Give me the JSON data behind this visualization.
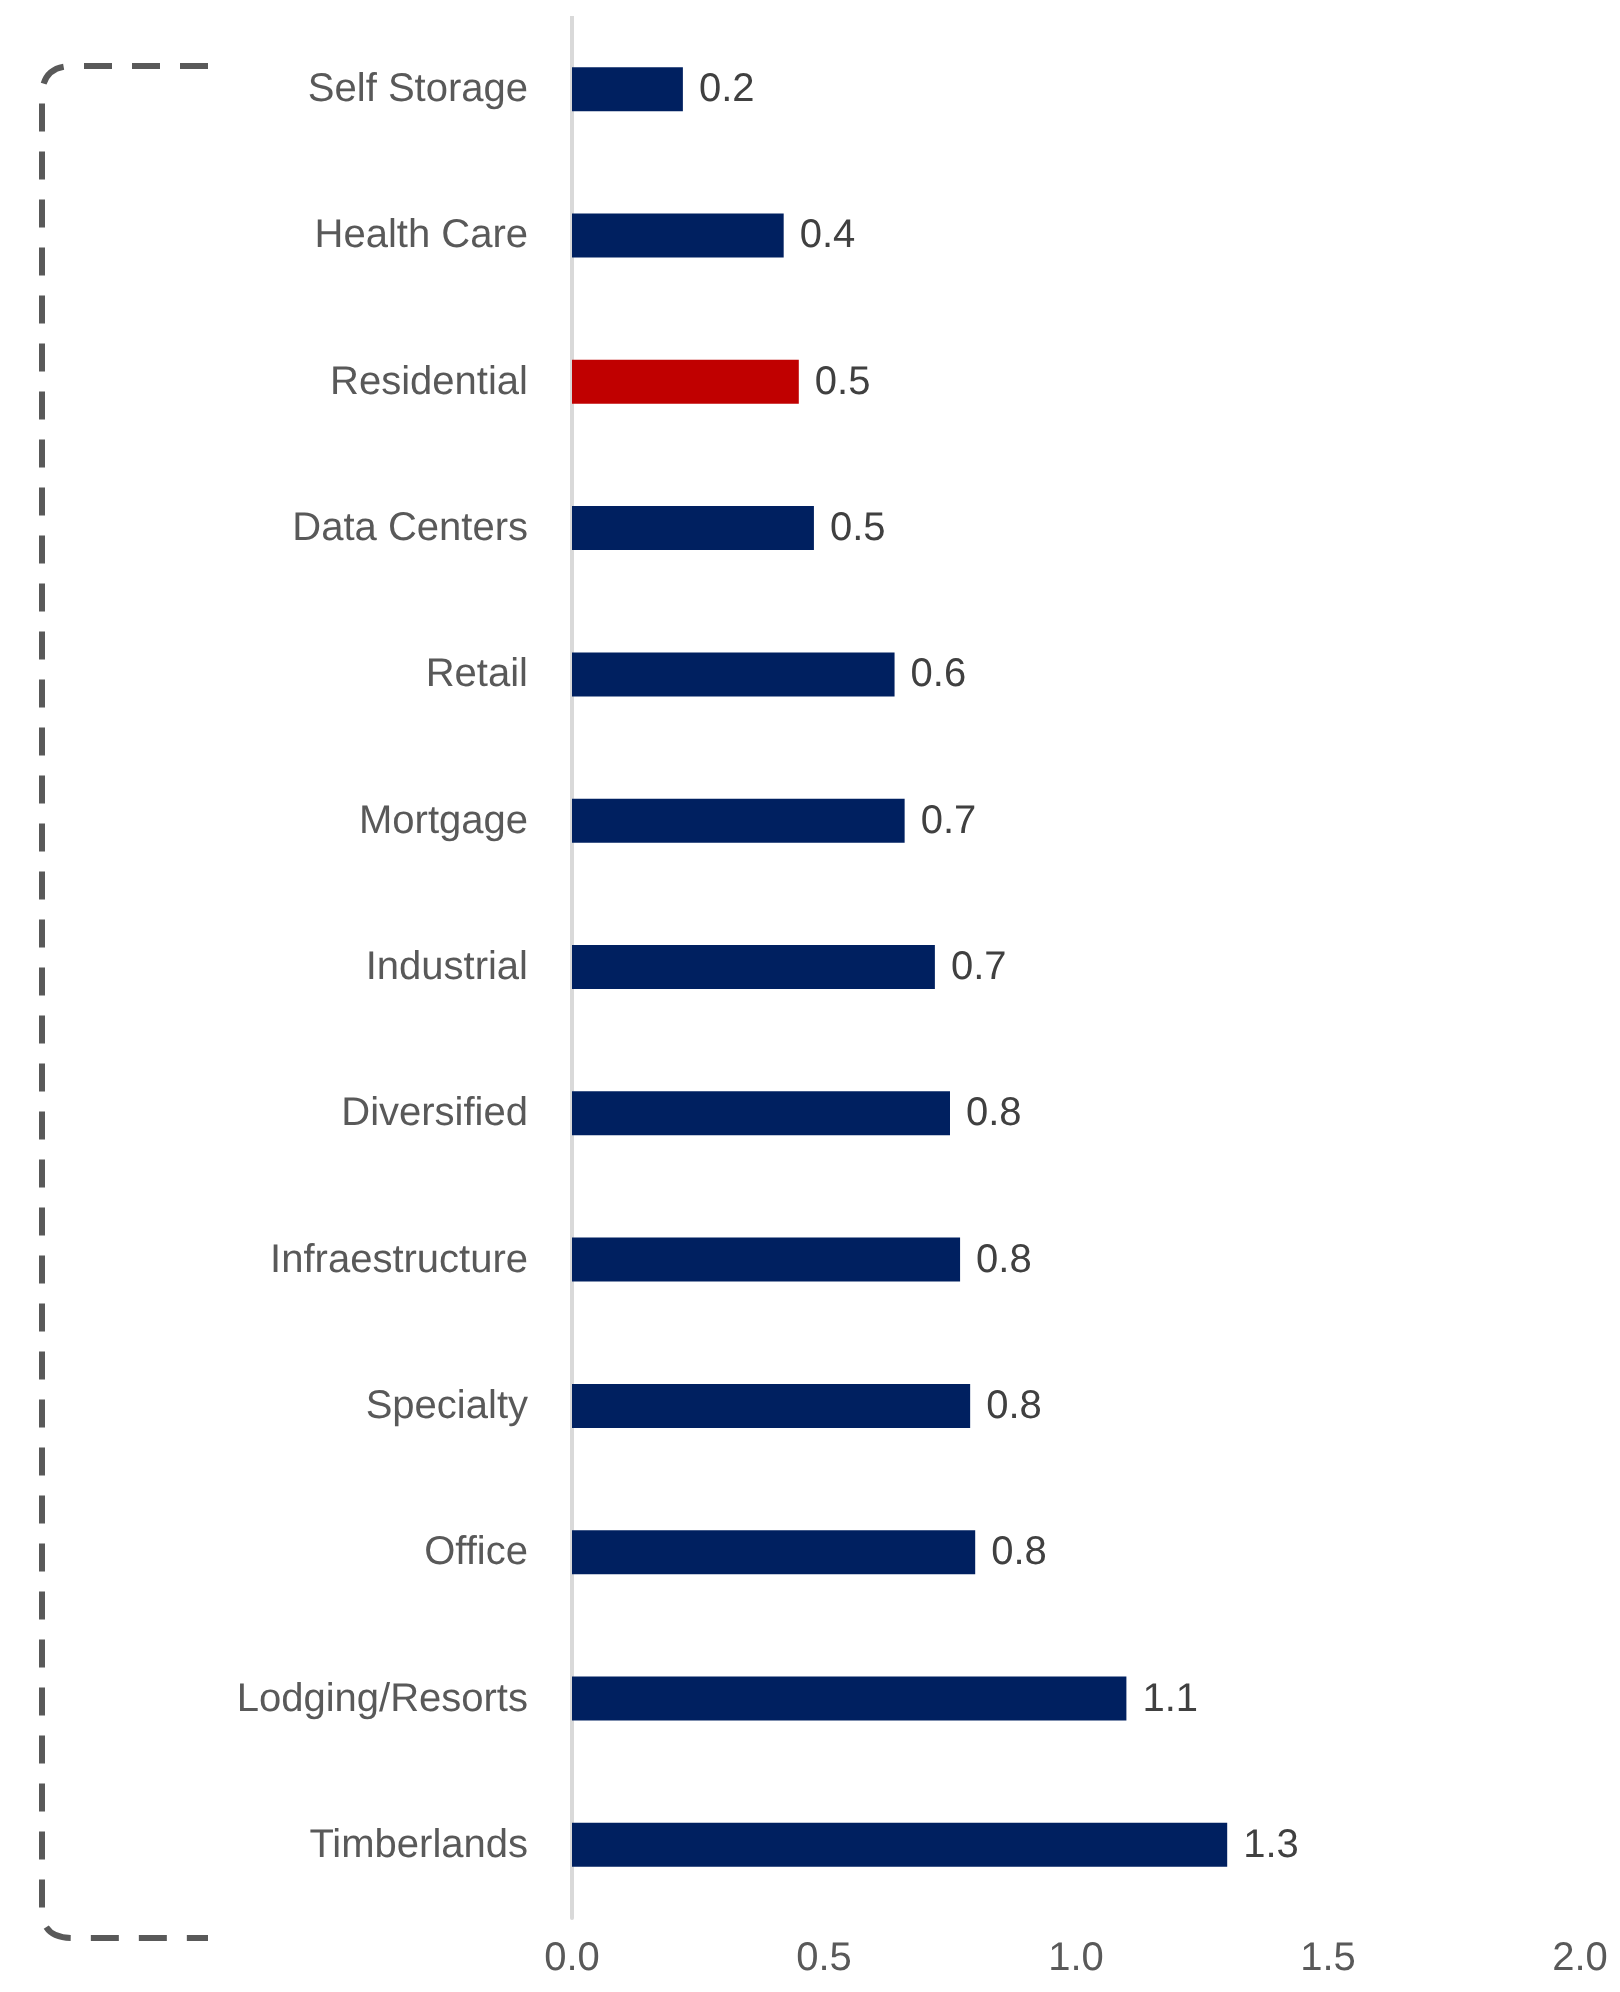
{
  "chart_data": {
    "type": "bar",
    "orientation": "horizontal",
    "categories": [
      "Self Storage",
      "Health Care",
      "Residential",
      "Data Centers",
      "Retail",
      "Mortgage",
      "Industrial",
      "Diversified",
      "Infraestructure",
      "Specialty",
      "Office",
      "Lodging/Resorts",
      "Timberlands"
    ],
    "values": [
      0.22,
      0.42,
      0.45,
      0.48,
      0.64,
      0.66,
      0.72,
      0.75,
      0.77,
      0.79,
      0.8,
      1.1,
      1.3
    ],
    "value_labels": [
      "0.2",
      "0.4",
      "0.5",
      "0.5",
      "0.6",
      "0.7",
      "0.7",
      "0.8",
      "0.8",
      "0.8",
      "0.8",
      "1.1",
      "1.3"
    ],
    "colors": [
      "#002060",
      "#002060",
      "#c00000",
      "#002060",
      "#002060",
      "#002060",
      "#002060",
      "#002060",
      "#002060",
      "#002060",
      "#002060",
      "#002060",
      "#002060"
    ],
    "xlim": [
      0,
      2
    ],
    "xticks": [
      {
        "value": 0,
        "label": "0.0"
      },
      {
        "value": 0.5,
        "label": "0.5"
      },
      {
        "value": 1,
        "label": "1.0"
      },
      {
        "value": 1.5,
        "label": "1.5"
      },
      {
        "value": 2,
        "label": "2.0"
      }
    ],
    "grid": false
  }
}
